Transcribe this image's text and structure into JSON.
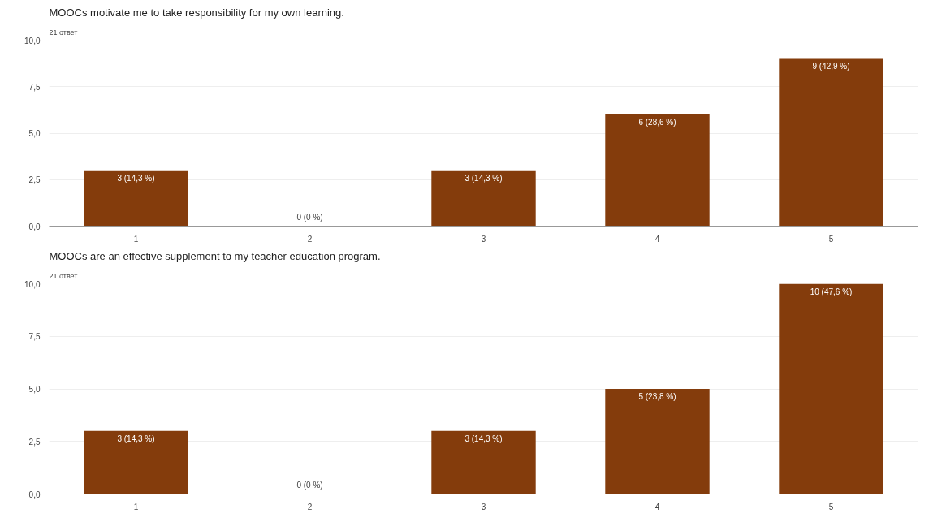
{
  "chart_data": [
    {
      "type": "bar",
      "title": "MOOCs motivate me to take responsibility for my own learning.",
      "subtitle": "21 ответ",
      "categories": [
        "1",
        "2",
        "3",
        "4",
        "5"
      ],
      "values": [
        3,
        0,
        3,
        6,
        9
      ],
      "value_labels": [
        "3 (14,3 %)",
        "0 (0 %)",
        "3 (14,3 %)",
        "6 (28,6 %)",
        "9 (42,9 %)"
      ],
      "color": "#843c0c",
      "ylim": [
        0,
        10
      ],
      "yticks": [
        {
          "value": 0,
          "label": "0,0"
        },
        {
          "value": 2.5,
          "label": "2,5"
        },
        {
          "value": 5,
          "label": "5,0"
        },
        {
          "value": 7.5,
          "label": "7,5"
        },
        {
          "value": 10,
          "label": "10,0"
        }
      ],
      "grid": "y"
    },
    {
      "type": "bar",
      "title": "MOOCs are an effective supplement to my teacher education program.",
      "subtitle": "21 ответ",
      "categories": [
        "1",
        "2",
        "3",
        "4",
        "5"
      ],
      "values": [
        3,
        0,
        3,
        5,
        10
      ],
      "value_labels": [
        "3 (14,3 %)",
        "0 (0 %)",
        "3 (14,3 %)",
        "5 (23,8 %)",
        "10 (47,6 %)"
      ],
      "color": "#843c0c",
      "ylim": [
        0,
        10
      ],
      "yticks": [
        {
          "value": 0,
          "label": "0,0"
        },
        {
          "value": 2.5,
          "label": "2,5"
        },
        {
          "value": 5,
          "label": "5,0"
        },
        {
          "value": 7.5,
          "label": "7,5"
        },
        {
          "value": 10,
          "label": "10,0"
        }
      ],
      "grid": "y"
    }
  ]
}
